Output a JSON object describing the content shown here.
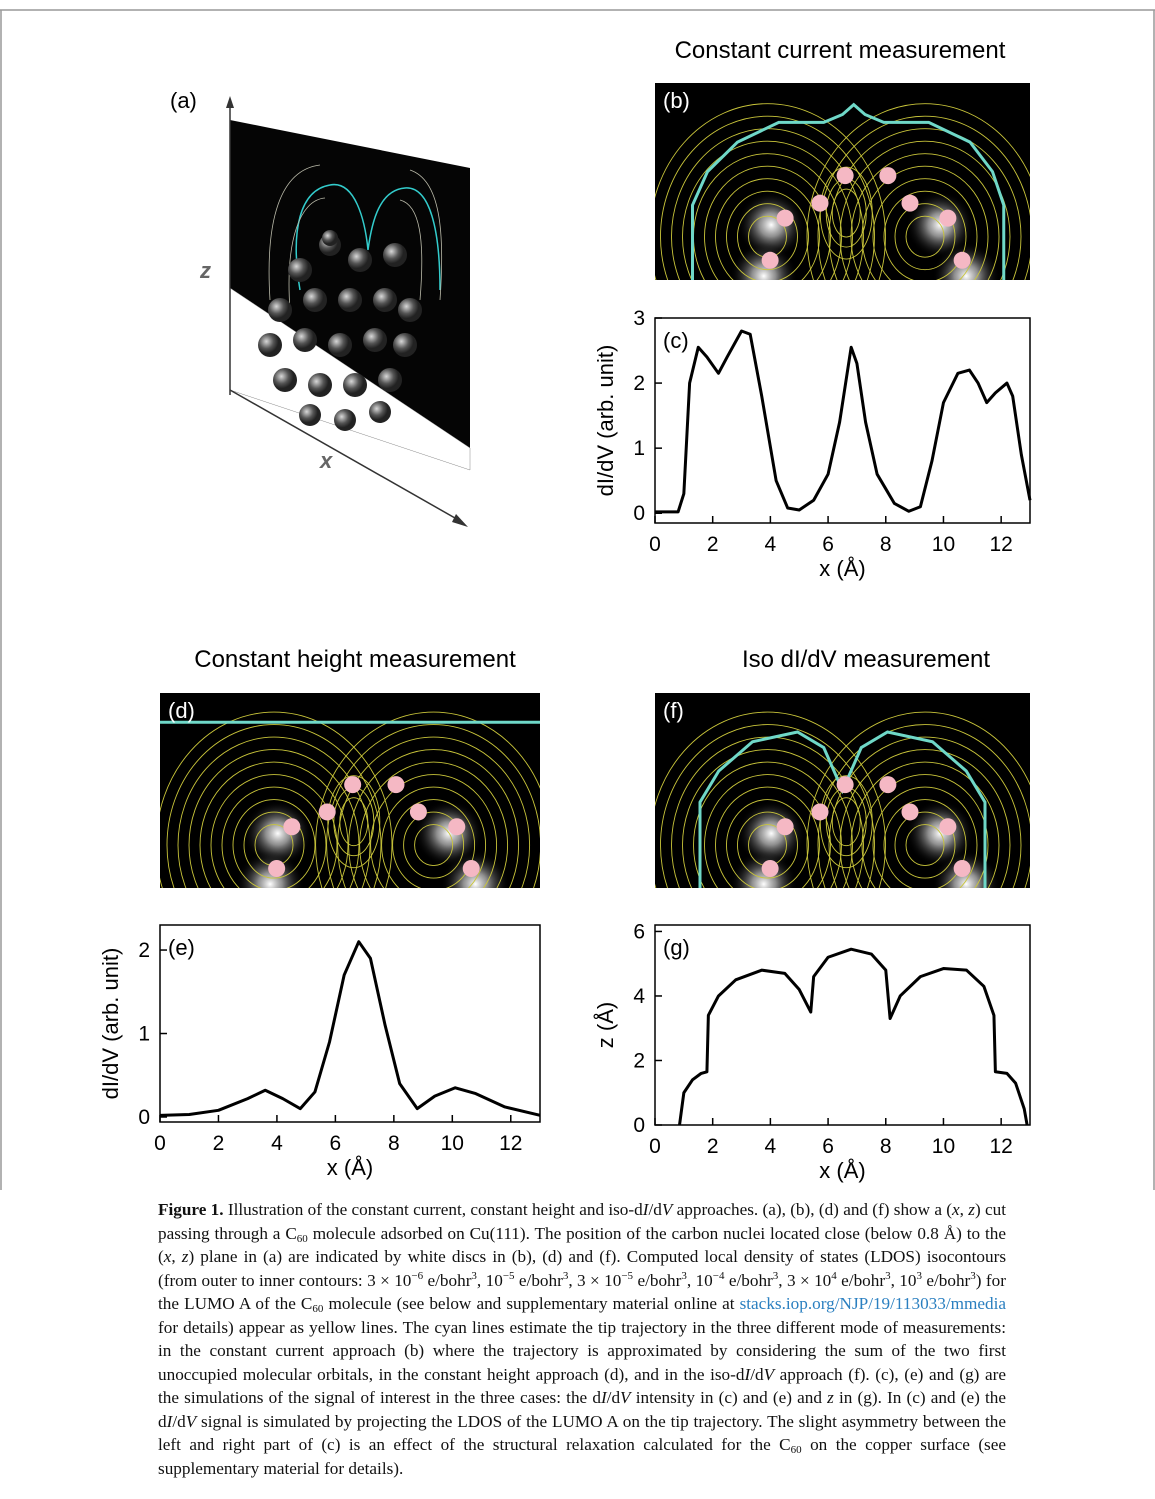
{
  "headings": [
    "Constant current measurement",
    "Constant height measurement",
    "Iso dI/dV measurement"
  ],
  "panels": [
    {
      "label": "(a)",
      "z_label": "z",
      "x_label": "x"
    },
    {
      "label": "(b)"
    },
    {
      "label": "(d)"
    },
    {
      "label": "(f)"
    }
  ],
  "chart_data": [
    {
      "type": "line",
      "label": "(c)",
      "xlabel": "x (Å)",
      "ylabel": "dI/dV (arb. unit)",
      "color": "#000000",
      "x": [
        0,
        0.8,
        1.0,
        1.2,
        1.5,
        1.8,
        2.2,
        2.5,
        3.0,
        3.3,
        3.7,
        4.2,
        4.6,
        5.0,
        5.5,
        6.0,
        6.4,
        6.8,
        7.0,
        7.3,
        7.7,
        8.3,
        8.8,
        9.2,
        9.6,
        10.0,
        10.5,
        10.9,
        11.2,
        11.5,
        11.8,
        12.2,
        12.4,
        12.7,
        13
      ],
      "values": [
        0.02,
        0.02,
        0.3,
        2.0,
        2.55,
        2.4,
        2.15,
        2.4,
        2.8,
        2.75,
        1.8,
        0.5,
        0.08,
        0.05,
        0.2,
        0.6,
        1.4,
        2.55,
        2.3,
        1.4,
        0.6,
        0.15,
        0.03,
        0.1,
        0.8,
        1.7,
        2.15,
        2.2,
        2.0,
        1.7,
        1.85,
        2.0,
        1.8,
        0.9,
        0.2
      ],
      "xlim": [
        0,
        13
      ],
      "ylim": [
        -0.15,
        3.0
      ],
      "xticks": [
        0,
        2,
        4,
        6,
        8,
        10,
        12
      ],
      "yticks": [
        0,
        1,
        2,
        3
      ]
    },
    {
      "type": "line",
      "label": "(e)",
      "xlabel": "x (Å)",
      "ylabel": "dI/dV (arb. unit)",
      "color": "#000000",
      "x": [
        0,
        1,
        2,
        3,
        3.6,
        4.2,
        4.8,
        5.3,
        5.8,
        6.3,
        6.8,
        7.2,
        7.7,
        8.2,
        8.8,
        9.4,
        10.1,
        10.8,
        11.8,
        13
      ],
      "values": [
        0.02,
        0.03,
        0.08,
        0.22,
        0.32,
        0.22,
        0.1,
        0.3,
        0.9,
        1.7,
        2.1,
        1.9,
        1.1,
        0.4,
        0.1,
        0.25,
        0.35,
        0.28,
        0.12,
        0.02
      ],
      "xlim": [
        0,
        13
      ],
      "ylim": [
        -0.06,
        2.3
      ],
      "xticks": [
        0,
        2,
        4,
        6,
        8,
        10,
        12
      ],
      "yticks": [
        0,
        1,
        2
      ]
    },
    {
      "type": "line",
      "label": "(g)",
      "xlabel": "x (Å)",
      "ylabel": "z (Å)",
      "color": "#000000",
      "x": [
        0.85,
        1.0,
        1.3,
        1.6,
        1.8,
        1.85,
        2.2,
        2.8,
        3.7,
        4.5,
        5.0,
        5.4,
        5.5,
        6.0,
        6.8,
        7.5,
        8.0,
        8.15,
        8.5,
        9.2,
        10,
        10.8,
        11.4,
        11.75,
        11.8,
        12.2,
        12.5,
        12.8,
        12.9
      ],
      "values": [
        0,
        1.0,
        1.4,
        1.6,
        1.65,
        3.4,
        4.0,
        4.5,
        4.8,
        4.7,
        4.2,
        3.5,
        4.6,
        5.2,
        5.45,
        5.3,
        4.8,
        3.3,
        4.0,
        4.6,
        4.85,
        4.8,
        4.3,
        3.4,
        1.65,
        1.6,
        1.3,
        0.5,
        0
      ],
      "xlim": [
        0,
        13
      ],
      "ylim": [
        0,
        6.2
      ],
      "xticks": [
        0,
        2,
        4,
        6,
        8,
        10,
        12
      ],
      "yticks": [
        0,
        2,
        4,
        6
      ]
    }
  ],
  "caption": {
    "label": "Figure 1.",
    "segments": [
      {
        "text": "Illustration of the constant current, constant height and iso-d"
      },
      {
        "text": "I",
        "style": "italic"
      },
      {
        "text": "/d"
      },
      {
        "text": "V",
        "style": "italic"
      },
      {
        "text": " approaches. (a), (b), (d) and (f) show a ("
      },
      {
        "text": "x",
        "style": "italic"
      },
      {
        "text": ", "
      },
      {
        "text": "z",
        "style": "italic"
      },
      {
        "text": ") cut passing through a C"
      },
      {
        "text": "60",
        "style": "sub"
      },
      {
        "text": " molecule adsorbed on Cu(111). The position of the carbon nuclei located close (below 0.8 Å) to the ("
      },
      {
        "text": "x",
        "style": "italic"
      },
      {
        "text": ", "
      },
      {
        "text": "z",
        "style": "italic"
      },
      {
        "text": ") plane in (a) are indicated by white discs in (b), (d) and (f). Computed local density of states (LDOS) isocontours (from outer to inner contours: 3 × 10"
      },
      {
        "text": "−6",
        "style": "sup"
      },
      {
        "text": " e/bohr"
      },
      {
        "text": "3",
        "style": "sup"
      },
      {
        "text": ", 10"
      },
      {
        "text": "−5",
        "style": "sup"
      },
      {
        "text": " e/bohr"
      },
      {
        "text": "3",
        "style": "sup"
      },
      {
        "text": ", 3 × 10"
      },
      {
        "text": "−5",
        "style": "sup"
      },
      {
        "text": " e/bohr"
      },
      {
        "text": "3",
        "style": "sup"
      },
      {
        "text": ", 10"
      },
      {
        "text": "−4",
        "style": "sup"
      },
      {
        "text": " e/bohr"
      },
      {
        "text": "3",
        "style": "sup"
      },
      {
        "text": ", 3 × 10"
      },
      {
        "text": "4",
        "style": "sup"
      },
      {
        "text": " e/bohr"
      },
      {
        "text": "3",
        "style": "sup"
      },
      {
        "text": ", 10"
      },
      {
        "text": "3",
        "style": "sup"
      },
      {
        "text": " e/bohr"
      },
      {
        "text": "3",
        "style": "sup"
      },
      {
        "text": ") for the LUMO A of the C"
      },
      {
        "text": "60",
        "style": "sub"
      },
      {
        "text": " molecule (see below and supplementary material online at "
      },
      {
        "text": "stacks.iop.org/NJP/19/113033/mmedia",
        "style": "link"
      },
      {
        "text": " for details) appear as yellow lines. The cyan lines estimate the tip trajectory in the three different mode of measurements: in the constant current approach (b) where the trajectory is approximated by considering the sum of the two first unoccupied molecular orbitals, in the constant height approach (d), and in the iso-d"
      },
      {
        "text": "I",
        "style": "italic"
      },
      {
        "text": "/d"
      },
      {
        "text": "V",
        "style": "italic"
      },
      {
        "text": " approach (f). (c), (e) and (g) are the simulations of the signal of interest in the three cases: the d"
      },
      {
        "text": "I",
        "style": "italic"
      },
      {
        "text": "/d"
      },
      {
        "text": "V",
        "style": "italic"
      },
      {
        "text": " intensity in (c) and (e) and "
      },
      {
        "text": "z",
        "style": "italic"
      },
      {
        "text": " in (g). In (c) and (e) the d"
      },
      {
        "text": "I",
        "style": "italic"
      },
      {
        "text": "/d"
      },
      {
        "text": "V",
        "style": "italic"
      },
      {
        "text": " signal is simulated by projecting the LDOS of the LUMO A on the tip trajectory. The slight asymmetry between the left and right part of (c) is an effect of the structural relaxation calculated for the C"
      },
      {
        "text": "60",
        "style": "sub"
      },
      {
        "text": " on the copper surface (see supplementary material for details)."
      }
    ]
  }
}
